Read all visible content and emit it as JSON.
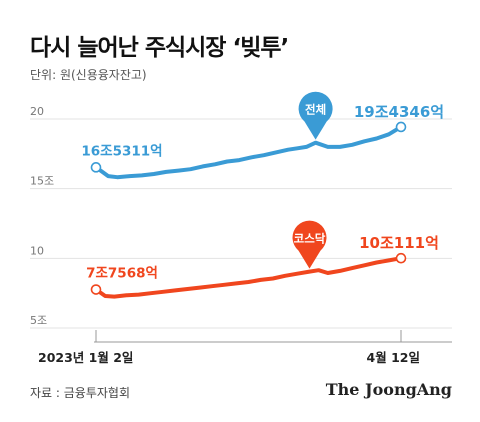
{
  "title": "다시 늘어난 주식시장 ‘빚투’",
  "unit": "단위: 원(신용융자잔고)",
  "source": "자료 : 금융투자협회",
  "brand": "The JoongAng",
  "colors": {
    "total": "#3a9bd5",
    "kosdaq": "#f0461e",
    "axis": "#999999",
    "grid": "#e3e3e3"
  },
  "chart_data": {
    "type": "line",
    "title": "다시 늘어난 주식시장 ‘빚투’",
    "ylabel": "단위: 원(신용융자잔고)",
    "ylim": [
      5,
      20
    ],
    "y_unit": "조",
    "yticks": [
      "20",
      "15조",
      "10",
      "5조"
    ],
    "ytick_values": [
      20,
      15,
      10,
      5
    ],
    "x_range": [
      "2023-01-02",
      "2023-04-12"
    ],
    "xtick_labels": [
      "2023년 1월 2일",
      "4월 12일"
    ],
    "grid": true,
    "legend": "none",
    "series": [
      {
        "name": "전체",
        "color": "#3a9bd5",
        "x": [
          0,
          4,
          7,
          11,
          15,
          19,
          23,
          27,
          31,
          35,
          39,
          43,
          47,
          51,
          55,
          59,
          63,
          66,
          69,
          72,
          76,
          80,
          84,
          88,
          92,
          96,
          100
        ],
        "y": [
          16.53,
          15.9,
          15.82,
          15.9,
          15.95,
          16.05,
          16.2,
          16.3,
          16.4,
          16.6,
          16.75,
          16.95,
          17.05,
          17.25,
          17.4,
          17.6,
          17.8,
          17.9,
          18.0,
          18.3,
          18.0,
          18.0,
          18.15,
          18.4,
          18.6,
          18.9,
          19.43
        ],
        "start_label": "16조5311억",
        "end_label": "19조4346억",
        "marker_label": "전체",
        "marker_x": 72
      },
      {
        "name": "코스닥",
        "color": "#f0461e",
        "x": [
          0,
          3,
          6,
          10,
          14,
          18,
          22,
          26,
          30,
          34,
          38,
          42,
          46,
          50,
          54,
          58,
          62,
          66,
          70,
          73,
          76,
          80,
          84,
          88,
          92,
          96,
          100
        ],
        "y": [
          7.76,
          7.3,
          7.25,
          7.35,
          7.4,
          7.5,
          7.6,
          7.7,
          7.8,
          7.9,
          8.0,
          8.1,
          8.2,
          8.3,
          8.45,
          8.55,
          8.75,
          8.9,
          9.05,
          9.15,
          8.95,
          9.1,
          9.3,
          9.5,
          9.7,
          9.85,
          10.01
        ],
        "start_label": "7조7568억",
        "end_label": "10조111억",
        "marker_label": "코스닥",
        "marker_x": 70
      }
    ]
  }
}
